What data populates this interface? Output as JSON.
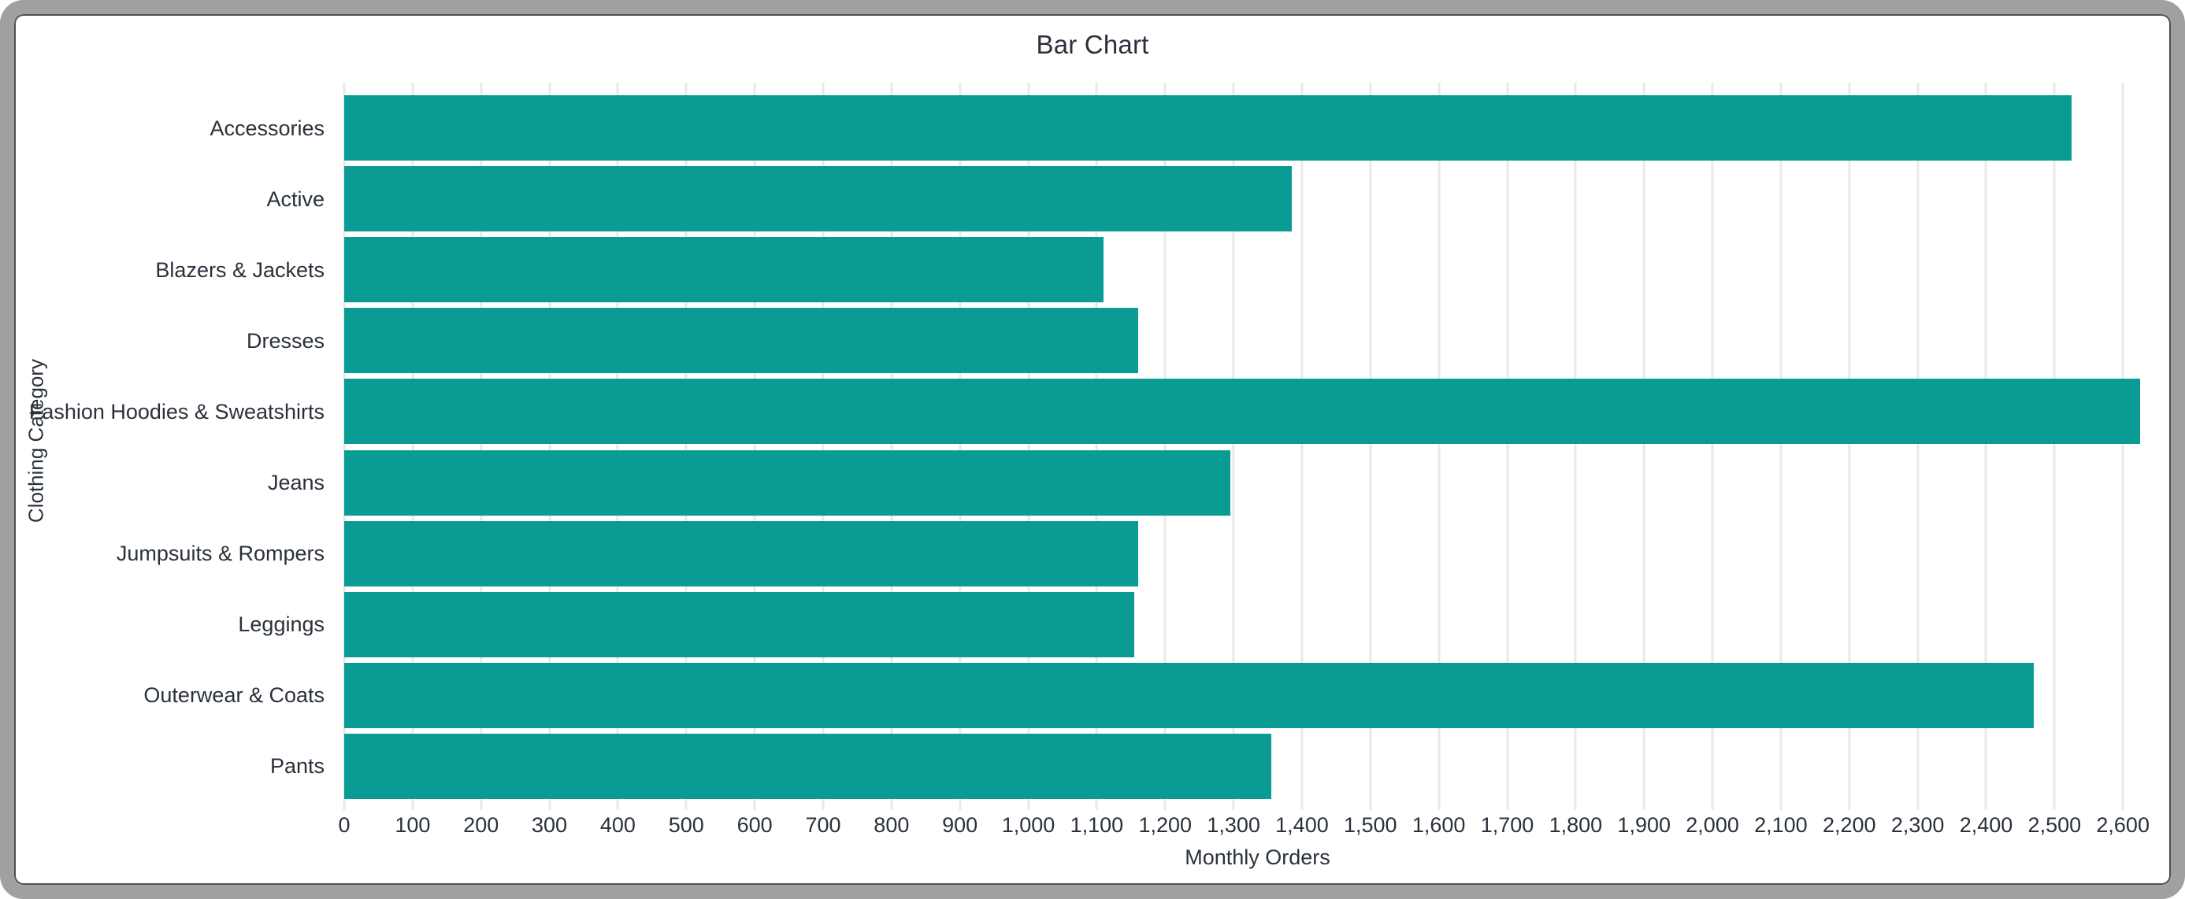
{
  "chart_data": {
    "type": "bar",
    "orientation": "horizontal",
    "title": "Bar Chart",
    "xlabel": "Monthly Orders",
    "ylabel": "Clothing Category",
    "categories": [
      "Accessories",
      "Active",
      "Blazers & Jackets",
      "Dresses",
      "Fashion Hoodies & Sweatshirts",
      "Jeans",
      "Jumpsuits & Rompers",
      "Leggings",
      "Outerwear & Coats",
      "Pants"
    ],
    "values": [
      2525,
      1385,
      1110,
      1160,
      2625,
      1295,
      1160,
      1155,
      2470,
      1355
    ],
    "xlim": [
      0,
      2670
    ],
    "tick_step": 100,
    "tick_values": [
      0,
      100,
      200,
      300,
      400,
      500,
      600,
      700,
      800,
      900,
      1000,
      1100,
      1200,
      1300,
      1400,
      1500,
      1600,
      1700,
      1800,
      1900,
      2000,
      2100,
      2200,
      2300,
      2400,
      2500,
      2600
    ],
    "tick_labels": [
      "0",
      "100",
      "200",
      "300",
      "400",
      "500",
      "600",
      "700",
      "800",
      "900",
      "1,000",
      "1,100",
      "1,200",
      "1,300",
      "1,400",
      "1,500",
      "1,600",
      "1,700",
      "1,800",
      "1,900",
      "2,000",
      "2,100",
      "2,200",
      "2,300",
      "2,400",
      "2,500",
      "2,600"
    ],
    "grid": "vertical-gridlines",
    "legend": "none",
    "colors": {
      "bar": "#0b9b95",
      "grid": "#e9e9e9",
      "text": "#2a313b",
      "frame": "#a0a0a0",
      "background": "#ffffff"
    }
  }
}
